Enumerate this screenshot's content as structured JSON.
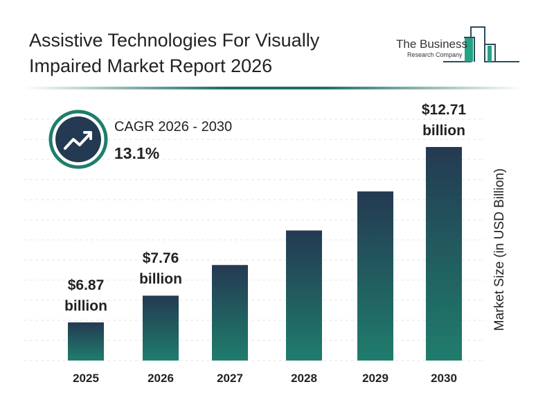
{
  "header": {
    "title": "Assistive Technologies For Visually Impaired Market Report 2026"
  },
  "logo": {
    "line1": "The Business",
    "line2": "Research Company"
  },
  "cagr": {
    "label": "CAGR 2026 - 2030",
    "value": "13.1%",
    "icon": "trend-up-icon"
  },
  "colors": {
    "bar_top": "#243a52",
    "bar_bottom": "#1f7d6c",
    "accent": "#1f6f62"
  },
  "chart_data": {
    "type": "bar",
    "title": "Assistive Technologies For Visually Impaired Market Report 2026",
    "ylabel": "Market Size (in USD Billion)",
    "xlabel": "",
    "categories": [
      "2025",
      "2026",
      "2027",
      "2028",
      "2029",
      "2030"
    ],
    "values": [
      6.87,
      7.76,
      8.78,
      9.93,
      11.23,
      12.71
    ],
    "data_labels": [
      "$6.87 billion",
      "$7.76 billion",
      "",
      "",
      "",
      "$12.71 billion"
    ],
    "ylim": [
      5.6,
      13.5
    ],
    "grid": true
  }
}
